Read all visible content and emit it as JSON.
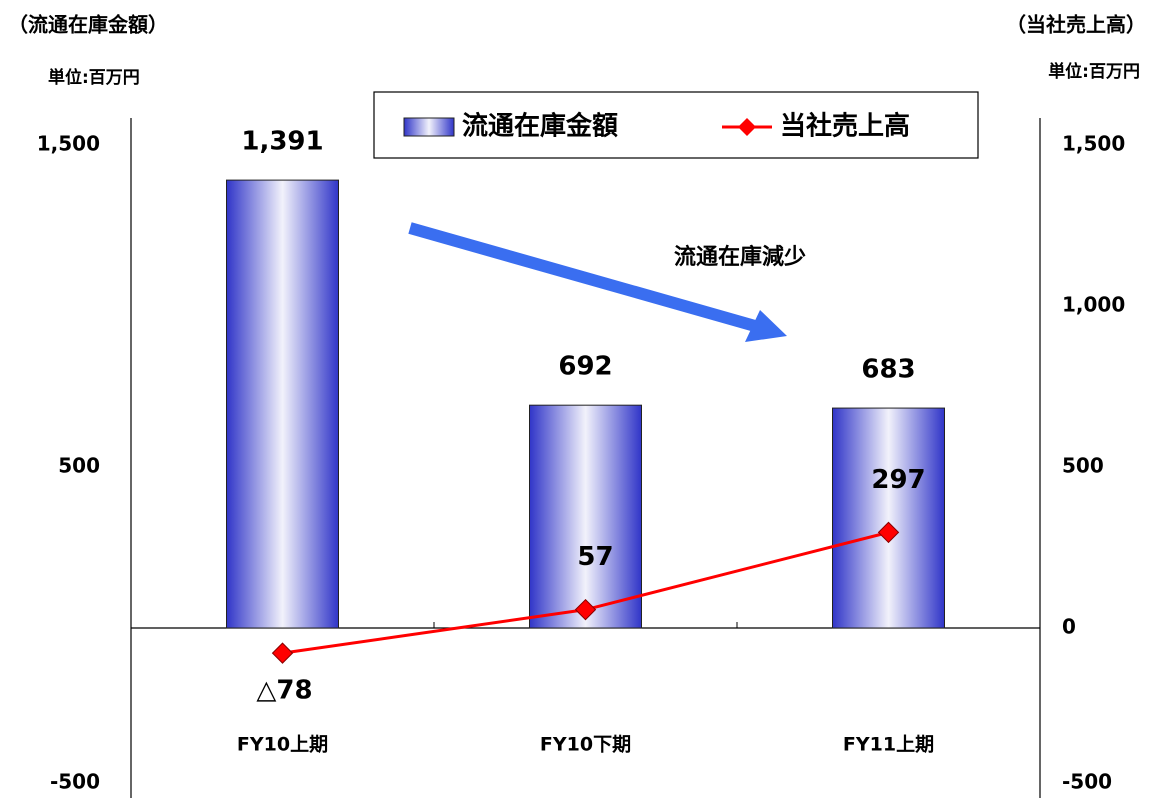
{
  "chart_data": {
    "type": "bar_line",
    "y_title": "（流通在庫金額）",
    "y2_title": "（当社売上高）",
    "y_unit": "単位:百万円",
    "y2_unit": "単位:百万円",
    "categories": [
      "FY10上期",
      "FY10下期",
      "FY11上期"
    ],
    "series": [
      {
        "name": "流通在庫金額",
        "type": "bar",
        "axis": "y",
        "color": "#3035c8",
        "values": [
          1391,
          692,
          683
        ],
        "value_labels": [
          "1,391",
          "692",
          "683"
        ]
      },
      {
        "name": "当社売上高",
        "type": "line",
        "axis": "y2",
        "color": "#ff0000",
        "values": [
          -78,
          57,
          297
        ],
        "value_labels": [
          "△78",
          "57",
          "297"
        ]
      }
    ],
    "ylim": [
      -500,
      1500
    ],
    "yticks": [
      {
        "value": 1500,
        "label": "1,500"
      },
      500,
      -500
    ],
    "y2lim": [
      -500,
      1500
    ],
    "y2ticks": [
      {
        "value": 1500,
        "label": "1,500"
      },
      {
        "value": 1000,
        "label": "1,000"
      },
      500,
      0,
      -500
    ],
    "negative_tick_color": "#ff0000",
    "annotation": "流通在庫減少",
    "legend": "top"
  }
}
